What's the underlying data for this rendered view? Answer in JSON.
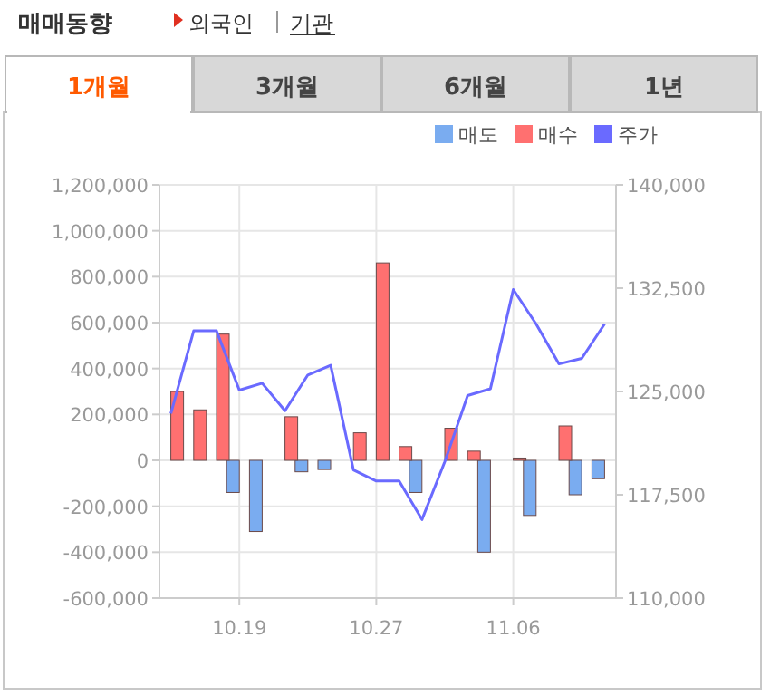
{
  "chart_data": {
    "type": "bar",
    "title": "매매동향",
    "annotations": [
      "외국인",
      "기관",
      "1개월",
      "3개월",
      "6개월",
      "1년"
    ],
    "categories": [
      null,
      null,
      null,
      "10.19",
      null,
      null,
      null,
      null,
      null,
      "10.27",
      null,
      null,
      null,
      null,
      null,
      "11.06",
      null,
      null,
      null,
      null
    ],
    "series": [
      {
        "name": "매도",
        "color": "#7aacf0",
        "values": [
          0,
          0,
          0,
          -140000,
          -310000,
          0,
          -50000,
          -40000,
          0,
          0,
          0,
          -140000,
          0,
          0,
          -400000,
          0,
          -240000,
          0,
          -150000,
          -80000
        ]
      },
      {
        "name": "매수",
        "color": "#ff7070",
        "values": [
          300000,
          220000,
          550000,
          0,
          0,
          190000,
          0,
          0,
          120000,
          860000,
          60000,
          0,
          140000,
          40000,
          0,
          10000,
          0,
          150000,
          0,
          0
        ]
      },
      {
        "name": "주가",
        "type": "line",
        "axis": "y2",
        "color": "#6a6aff",
        "values": [
          123400,
          129400,
          129400,
          125100,
          125600,
          123600,
          126200,
          126900,
          119300,
          118500,
          118500,
          115700,
          119900,
          124700,
          125200,
          132400,
          129900,
          127000,
          127400,
          129900
        ]
      }
    ],
    "ylim": [
      -600000,
      1200000
    ],
    "yticks": [
      {
        "value": -600000,
        "label": "-600,000"
      },
      {
        "value": -400000,
        "label": "-400,000"
      },
      {
        "value": -200000,
        "label": "-200,000"
      },
      0,
      {
        "value": 200000,
        "label": "200,000"
      },
      {
        "value": 400000,
        "label": "400,000"
      },
      {
        "value": 600000,
        "label": "600,000"
      },
      {
        "value": 800000,
        "label": "800,000"
      },
      {
        "value": 1000000,
        "label": "1,000,000"
      },
      {
        "value": 1200000,
        "label": "1,200,000"
      }
    ],
    "y2lim": [
      110000,
      140000
    ],
    "y2ticks": [
      {
        "value": 110000,
        "label": "110,000"
      },
      {
        "value": 117500,
        "label": "117,500"
      },
      {
        "value": 125000,
        "label": "125,000"
      },
      {
        "value": 132500,
        "label": "132,500"
      },
      {
        "value": 140000,
        "label": "140,000"
      }
    ],
    "grid": true,
    "legend": "top right",
    "marker": "none",
    "line_style": "solid"
  }
}
